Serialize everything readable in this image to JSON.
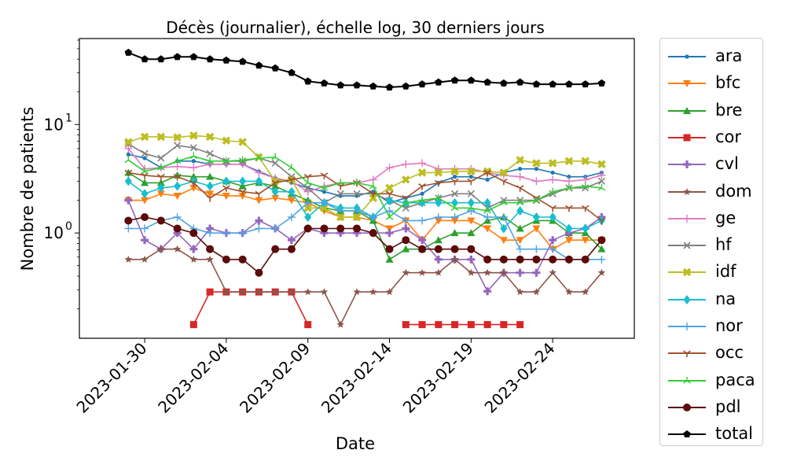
{
  "chart_data": {
    "type": "line",
    "title": "Décès (journalier), échelle log, 30 derniers jours",
    "xlabel": "Date",
    "ylabel": "Nombre de patients",
    "yscale": "log",
    "ylim": [
      0.107,
      62
    ],
    "xlim": [
      "2023-01-26",
      "2023-03-01"
    ],
    "x_ticks": [
      "2023-01-30",
      "2023-02-04",
      "2023-02-09",
      "2023-02-14",
      "2023-02-19",
      "2023-02-24"
    ],
    "y_ticks": [
      {
        "value": 1,
        "label": "10",
        "exp": "0"
      },
      {
        "value": 10,
        "label": "10",
        "exp": "1"
      }
    ],
    "grid": false,
    "legend": "outside-right",
    "x": [
      "2023-01-29",
      "2023-01-30",
      "2023-01-31",
      "2023-02-01",
      "2023-02-02",
      "2023-02-03",
      "2023-02-04",
      "2023-02-05",
      "2023-02-06",
      "2023-02-07",
      "2023-02-08",
      "2023-02-09",
      "2023-02-10",
      "2023-02-11",
      "2023-02-12",
      "2023-02-13",
      "2023-02-14",
      "2023-02-15",
      "2023-02-16",
      "2023-02-17",
      "2023-02-18",
      "2023-02-19",
      "2023-02-20",
      "2023-02-21",
      "2023-02-22",
      "2023-02-23",
      "2023-02-24",
      "2023-02-25",
      "2023-02-26",
      "2023-02-27"
    ],
    "series": [
      {
        "name": "ara",
        "color": "#1f77b4",
        "marker": "dot",
        "values": [
          5.3,
          4.9,
          4.0,
          4.6,
          4.6,
          4.3,
          4.3,
          4.3,
          3.7,
          3.2,
          2.9,
          2.6,
          2.4,
          2.2,
          2.2,
          2.4,
          1.9,
          2.1,
          2.3,
          2.9,
          3.3,
          3.3,
          3.1,
          3.6,
          3.9,
          3.9,
          3.6,
          3.3,
          3.3,
          3.6
        ]
      },
      {
        "name": "bfc",
        "color": "#ff7f0e",
        "marker": "triangle_down",
        "values": [
          2.0,
          2.0,
          2.3,
          2.2,
          2.6,
          2.3,
          2.2,
          2.2,
          2.0,
          2.1,
          2.0,
          1.9,
          1.6,
          1.4,
          1.4,
          1.3,
          1.1,
          1.3,
          0.86,
          1.3,
          1.3,
          1.3,
          1.1,
          0.86,
          0.86,
          1.1,
          0.71,
          0.86,
          0.86,
          0.86
        ]
      },
      {
        "name": "bre",
        "color": "#2ca02c",
        "marker": "triangle_up",
        "values": [
          3.6,
          2.9,
          2.9,
          3.4,
          3.3,
          3.3,
          3.0,
          2.7,
          2.9,
          2.7,
          2.3,
          2.0,
          1.7,
          1.6,
          1.6,
          1.3,
          0.57,
          0.71,
          0.71,
          0.86,
          1.0,
          1.0,
          1.3,
          1.4,
          1.1,
          1.3,
          1.3,
          1.0,
          1.0,
          0.71
        ]
      },
      {
        "name": "cor",
        "color": "#d62728",
        "marker": "square",
        "values": [
          null,
          null,
          null,
          null,
          0.143,
          0.286,
          0.286,
          0.286,
          0.286,
          0.286,
          0.286,
          0.143,
          null,
          null,
          null,
          null,
          null,
          0.143,
          0.143,
          0.143,
          0.143,
          0.143,
          0.143,
          0.143,
          0.143,
          null,
          null,
          null,
          null,
          null
        ]
      },
      {
        "name": "cvl",
        "color": "#9467bd",
        "marker": "plus",
        "values": [
          2.0,
          0.86,
          0.71,
          1.0,
          0.71,
          1.1,
          1.0,
          1.0,
          1.3,
          1.1,
          0.86,
          1.1,
          1.0,
          1.0,
          1.0,
          1.0,
          1.0,
          1.1,
          0.86,
          0.57,
          0.57,
          0.57,
          0.29,
          0.43,
          0.43,
          0.43,
          0.86,
          1.0,
          1.1,
          1.4
        ]
      },
      {
        "name": "dom",
        "color": "#8c564b",
        "marker": "star",
        "values": [
          0.57,
          0.57,
          0.71,
          0.71,
          0.57,
          0.57,
          0.286,
          0.286,
          0.286,
          0.286,
          0.286,
          0.286,
          0.286,
          0.143,
          0.286,
          0.286,
          0.286,
          0.43,
          0.43,
          0.43,
          0.57,
          0.43,
          0.43,
          0.43,
          0.286,
          0.286,
          0.43,
          0.286,
          0.286,
          0.43
        ]
      },
      {
        "name": "ge",
        "color": "#e377c2",
        "marker": "plus_thin",
        "values": [
          6.0,
          3.9,
          4.0,
          4.1,
          4.0,
          4.3,
          4.3,
          4.3,
          3.6,
          3.2,
          3.0,
          2.4,
          2.7,
          2.9,
          2.9,
          3.1,
          4.0,
          4.3,
          4.4,
          3.9,
          3.9,
          3.9,
          3.6,
          3.4,
          3.3,
          3.0,
          3.1,
          3.0,
          3.1,
          3.4
        ]
      },
      {
        "name": "hf",
        "color": "#7f7f7f",
        "marker": "x",
        "values": [
          6.6,
          5.4,
          4.9,
          6.4,
          6.1,
          5.4,
          4.6,
          4.6,
          4.9,
          4.4,
          3.3,
          2.6,
          1.9,
          2.3,
          2.3,
          2.3,
          2.0,
          1.7,
          1.9,
          2.1,
          2.3,
          2.3,
          1.7,
          2.0,
          2.0,
          2.0,
          2.3,
          2.6,
          2.6,
          3.0
        ]
      },
      {
        "name": "idf",
        "color": "#bcbd22",
        "marker": "x_filled",
        "values": [
          6.9,
          7.7,
          7.7,
          7.6,
          7.9,
          7.7,
          7.1,
          6.9,
          5.0,
          3.0,
          3.1,
          1.7,
          1.7,
          1.4,
          1.4,
          2.1,
          2.6,
          3.1,
          3.6,
          3.6,
          3.7,
          3.7,
          3.7,
          3.6,
          4.7,
          4.4,
          4.4,
          4.6,
          4.6,
          4.3
        ]
      },
      {
        "name": "na",
        "color": "#17becf",
        "marker": "diamond",
        "values": [
          3.0,
          2.3,
          2.6,
          2.7,
          3.0,
          2.7,
          3.0,
          3.0,
          3.0,
          2.4,
          2.4,
          1.4,
          1.9,
          1.7,
          1.7,
          1.4,
          2.0,
          1.9,
          1.9,
          1.9,
          1.9,
          1.9,
          1.9,
          1.1,
          1.6,
          1.4,
          1.4,
          1.1,
          1.1,
          1.3
        ]
      },
      {
        "name": "nor",
        "color": "#4fa3e6",
        "marker": "plus_thin",
        "values": [
          1.1,
          1.1,
          1.3,
          1.4,
          1.1,
          1.0,
          1.0,
          1.0,
          1.1,
          1.1,
          1.4,
          1.9,
          1.9,
          1.6,
          1.6,
          1.4,
          1.6,
          1.3,
          1.3,
          1.4,
          1.4,
          1.6,
          1.4,
          1.4,
          0.71,
          0.71,
          0.71,
          0.57,
          0.57,
          0.57
        ]
      },
      {
        "name": "occ",
        "color": "#a0522d",
        "marker": "tri_down",
        "values": [
          3.6,
          3.4,
          3.3,
          3.3,
          2.9,
          2.1,
          2.6,
          2.4,
          2.3,
          2.9,
          3.1,
          3.3,
          3.4,
          2.7,
          2.9,
          2.3,
          2.3,
          2.1,
          2.7,
          2.9,
          3.0,
          3.0,
          3.6,
          3.0,
          2.6,
          2.1,
          1.7,
          1.7,
          1.7,
          1.3
        ]
      },
      {
        "name": "paca",
        "color": "#32cd32",
        "marker": "tri_up_thin",
        "values": [
          4.7,
          3.7,
          4.0,
          4.6,
          5.1,
          4.6,
          4.6,
          4.7,
          4.9,
          5.0,
          4.0,
          2.9,
          2.6,
          2.9,
          2.9,
          2.7,
          1.4,
          1.9,
          2.0,
          2.1,
          1.7,
          1.7,
          1.6,
          1.9,
          1.9,
          2.0,
          2.4,
          2.6,
          2.7,
          2.6
        ]
      },
      {
        "name": "pdl",
        "color": "#5c0a0a",
        "marker": "dot_large",
        "values": [
          1.3,
          1.4,
          1.3,
          1.1,
          1.0,
          0.71,
          0.57,
          0.57,
          0.43,
          0.71,
          0.71,
          1.1,
          1.1,
          1.1,
          1.1,
          1.0,
          0.71,
          0.86,
          0.71,
          0.71,
          0.71,
          0.71,
          0.57,
          0.57,
          0.57,
          0.57,
          0.57,
          0.57,
          0.57,
          0.86
        ]
      },
      {
        "name": "total",
        "color": "#000000",
        "marker": "pentagon",
        "values": [
          46,
          40,
          40,
          42,
          42,
          40,
          39,
          38,
          35,
          33,
          30,
          25,
          24,
          23,
          23,
          22.5,
          22,
          22.5,
          23.5,
          24.5,
          25.5,
          25.5,
          24.5,
          24,
          24.5,
          23.5,
          23.5,
          23.5,
          23.5,
          24
        ]
      }
    ]
  }
}
